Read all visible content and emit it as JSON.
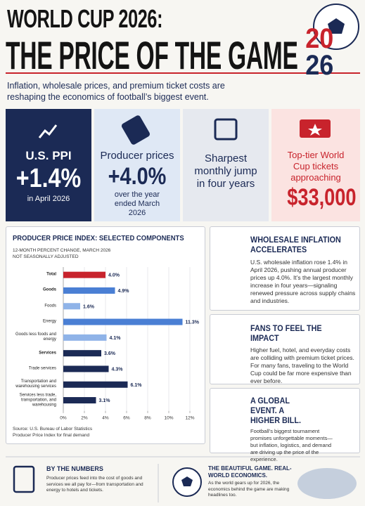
{
  "header": {
    "title_line1": "WORLD CUP 2026:",
    "title_line2": "THE PRICE OF THE GAME",
    "logo_top": "20",
    "logo_bottom": "26",
    "subtitle": "Inflation, wholesale prices, and premium ticket costs are reshaping the economics of football’s biggest event."
  },
  "stats": [
    {
      "label": "U.S. PPI",
      "value": "+1.4%",
      "note": "in April 2026"
    },
    {
      "label": "Producer prices",
      "value": "+4.0%",
      "note": "over the year ended March 2026"
    },
    {
      "label": "Sharpest monthly jump in four years"
    },
    {
      "label": "Top-tier World Cup tickets approaching",
      "value": "$33,000"
    }
  ],
  "chart_data": {
    "type": "bar",
    "orientation": "horizontal",
    "title": "PRODUCER PRICE INDEX: SELECTED COMPONENTS",
    "subtitle": "12-MONTH PERCENT CHANGE, MARCH 2026",
    "note": "NOT SEASONALLY ADJUSTED",
    "categories": [
      "Total",
      "Goods",
      "Foods",
      "Energy",
      "Goods less foods and energy",
      "Services",
      "Trade services",
      "Transportation and warehousing services",
      "Services less trade, transportation, and warehousing"
    ],
    "values": [
      4.0,
      4.9,
      1.6,
      11.3,
      4.1,
      3.6,
      4.3,
      6.1,
      3.1
    ],
    "value_labels": [
      "4.0%",
      "4.9%",
      "1.6%",
      "11.3%",
      "4.1%",
      "3.6%",
      "4.3%",
      "6.1%",
      "3.1%"
    ],
    "colors": [
      "#c8232c",
      "#4a7fd4",
      "#8fb3e8",
      "#4a7fd4",
      "#8fb3e8",
      "#1b2a55",
      "#1b2a55",
      "#1b2a55",
      "#1b2a55"
    ],
    "xlim": [
      0,
      12
    ],
    "xticks": [
      {
        "value": 0,
        "label": "0%"
      },
      {
        "value": 2,
        "label": "2%"
      },
      {
        "value": 4,
        "label": "4%"
      },
      {
        "value": 6,
        "label": "6%"
      },
      {
        "value": 8,
        "label": "8%"
      },
      {
        "value": 10,
        "label": "10%"
      },
      {
        "value": 12,
        "label": "12%"
      }
    ],
    "grid": true,
    "source": "Source: U.S. Bureau of Labor Statistics Producer Price Index for final demand"
  },
  "sidebar": [
    {
      "title": "WHOLESALE INFLATION ACCELERATES",
      "text": "U.S. wholesale inflation rose 1.4% in April 2026, pushing annual producer prices up 4.0%. It’s the largest monthly increase in four years—signaling renewed pressure across supply chains and industries."
    },
    {
      "title": "FANS TO FEEL THE IMPACT",
      "text": "Higher fuel, hotel, and everyday costs are colliding with premium ticket prices. For many fans, traveling to the World Cup could be far more expensive than ever before."
    },
    {
      "title": "A GLOBAL EVENT. A HIGHER BILL.",
      "text": "Football’s biggest tournament promises unforgettable moments—but inflation, logistics, and demand are driving up the price of the experience."
    }
  ],
  "footer": [
    {
      "title": "BY THE NUMBERS",
      "text": "Producer prices feed into the cost of goods and services we all pay for—from transportation and energy to hotels and tickets."
    },
    {
      "title": "THE BEAUTIFUL GAME. REAL-WORLD ECONOMICS.",
      "text": "As the world gears up for 2026, the economics behind the game are making headlines too."
    }
  ]
}
